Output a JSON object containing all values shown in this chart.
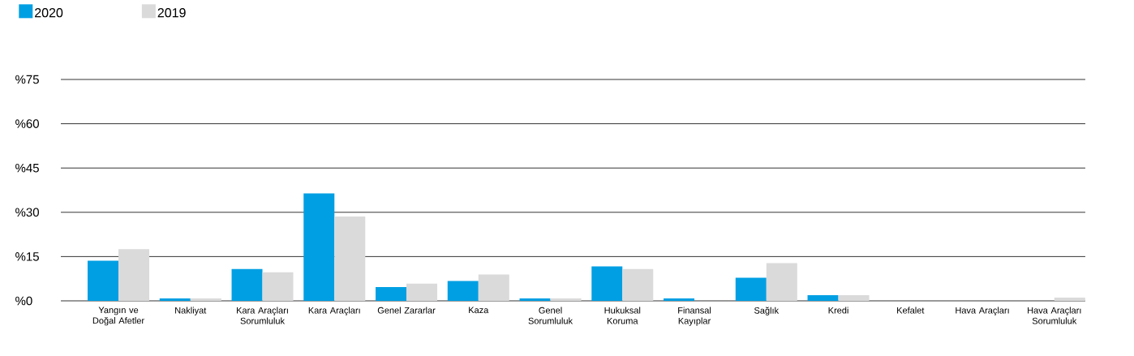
{
  "chart_data": {
    "type": "bar",
    "categories": [
      "Yangın ve Doğal Afetler",
      "Nakliyat",
      "Kara Araçları Sorumluluk",
      "Kara Araçları",
      "Genel Zararlar",
      "Kaza",
      "Genel Sorumluluk",
      "Hukuksal Koruma",
      "Finansal Kayıplar",
      "Sağlık",
      "Kredi",
      "Kefalet",
      "Hava Araçları",
      "Hava Araçları Sorumluluk"
    ],
    "series": [
      {
        "name": "2020",
        "color": "#009fe3",
        "values": [
          13.6,
          0.8,
          10.8,
          36.4,
          4.7,
          6.7,
          0.8,
          11.7,
          0.8,
          7.8,
          1.9,
          0,
          0,
          0
        ]
      },
      {
        "name": "2019",
        "color": "#dadada",
        "values": [
          17.5,
          0.8,
          9.7,
          28.6,
          5.8,
          8.9,
          0.8,
          10.8,
          0,
          12.8,
          1.9,
          0,
          0,
          1.1
        ]
      }
    ],
    "ylim": [
      0,
      75
    ],
    "yticks": [
      {
        "value": 0,
        "label": "%0"
      },
      {
        "value": 15,
        "label": "%15"
      },
      {
        "value": 30,
        "label": "%30"
      },
      {
        "value": 45,
        "label": "%45"
      },
      {
        "value": 60,
        "label": "%60"
      },
      {
        "value": 75,
        "label": "%75"
      }
    ],
    "grid": "y",
    "legend": "top left"
  }
}
